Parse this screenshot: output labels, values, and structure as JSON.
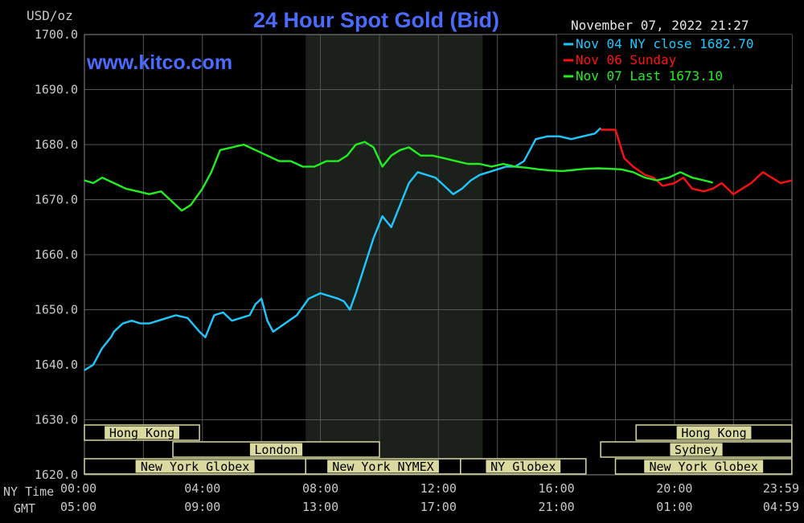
{
  "colors": {
    "background": "#000000",
    "grid": "#555555",
    "frame": "#888888",
    "tick_text": "#c9c9c9",
    "title": "#4b6bff",
    "session_fill": "#d9d9a0",
    "session_text": "#000000",
    "highlight_band": "#1b201b",
    "nov04": "#1ec8ff",
    "nov06": "#ff1010",
    "nov07": "#22ee22",
    "date": "#e6e6e6"
  },
  "header": {
    "unit_label": "USD/oz",
    "title": "24 Hour Spot Gold (Bid)",
    "watermark": "www.kitco.com",
    "timestamp": "November 07, 2022 21:27"
  },
  "legend": [
    {
      "text": "Nov 04 NY close 1682.70",
      "color": "#1ec8ff"
    },
    {
      "text": "Nov 06 Sunday",
      "color": "#ff1010"
    },
    {
      "text": "Nov 07 Last 1673.10",
      "color": "#22ee22"
    }
  ],
  "axis_labels": {
    "ny_time": "NY Time",
    "gmt": "GMT"
  },
  "sessions": [
    {
      "label": "Hong Kong",
      "row": 0,
      "start": 0,
      "end": 3.9
    },
    {
      "label": "London",
      "row": 1,
      "start": 3.0,
      "end": 10.0
    },
    {
      "label": "New York Globex",
      "row": 2,
      "start": 0,
      "end": 7.5
    },
    {
      "label": "New York NYMEX",
      "row": 2,
      "start": 7.5,
      "end": 12.75
    },
    {
      "label": "NY Globex",
      "row": 2,
      "start": 12.75,
      "end": 17.0
    },
    {
      "label": "Hong Kong",
      "row": 0,
      "start": 18.7,
      "end": 23.98
    },
    {
      "label": "Sydney",
      "row": 1,
      "start": 17.5,
      "end": 23.98
    },
    {
      "label": "New York Globex",
      "row": 2,
      "start": 18.0,
      "end": 23.98
    }
  ],
  "chart_data": {
    "type": "line",
    "title": "24 Hour Spot Gold (Bid)",
    "ylabel": "USD/oz",
    "ylim": [
      1620,
      1700
    ],
    "xlim": [
      0,
      23.983
    ],
    "highlight_band": [
      7.5,
      13.5
    ],
    "yticks": [
      "1700.0",
      "1690.0",
      "1680.0",
      "1670.0",
      "1660.0",
      "1650.0",
      "1640.0",
      "1630.0",
      "1620.0"
    ],
    "ytick_values": [
      1700,
      1690,
      1680,
      1670,
      1660,
      1650,
      1640,
      1630,
      1620
    ],
    "xticks_ny": [
      "00:00",
      "04:00",
      "08:00",
      "12:00",
      "16:00",
      "20:00",
      "23:59"
    ],
    "xticks_gmt": [
      "05:00",
      "09:00",
      "13:00",
      "17:00",
      "21:00",
      "01:00",
      "04:59"
    ],
    "xtick_values": [
      0,
      4,
      8,
      12,
      16,
      20,
      23.983
    ],
    "grid": true,
    "legend_position": "top-right",
    "series": [
      {
        "name": "Nov 04 NY close 1682.70",
        "color": "#1ec8ff",
        "x": [
          0,
          0.3,
          0.6,
          0.9,
          1.0,
          1.3,
          1.6,
          1.9,
          2.2,
          2.5,
          2.8,
          3.1,
          3.5,
          3.9,
          4.1,
          4.4,
          4.7,
          5.0,
          5.3,
          5.6,
          5.8,
          6.0,
          6.2,
          6.4,
          6.8,
          7.2,
          7.6,
          8.0,
          8.3,
          8.6,
          8.8,
          9.0,
          9.2,
          9.5,
          9.8,
          10.1,
          10.4,
          10.7,
          11.0,
          11.3,
          11.6,
          11.9,
          12.2,
          12.5,
          12.8,
          13.1,
          13.4,
          13.7,
          14.0,
          14.3,
          14.6,
          14.9,
          15.3,
          15.7,
          16.1,
          16.5,
          16.9,
          17.3,
          17.5
        ],
        "y": [
          1639,
          1640,
          1643,
          1645,
          1646,
          1647.5,
          1648,
          1647.5,
          1647.5,
          1648,
          1648.5,
          1649,
          1648.5,
          1646,
          1645,
          1649,
          1649.5,
          1648,
          1648.5,
          1649,
          1651,
          1652,
          1648,
          1646,
          1647.5,
          1649,
          1652,
          1653,
          1652.5,
          1652,
          1651.5,
          1650,
          1653,
          1658,
          1663,
          1667,
          1665,
          1669,
          1673,
          1675,
          1674.5,
          1674,
          1672.5,
          1671,
          1672,
          1673.5,
          1674.5,
          1675,
          1675.5,
          1676,
          1676,
          1677,
          1681,
          1681.5,
          1681.5,
          1681,
          1681.5,
          1682,
          1683
        ]
      },
      {
        "name": "Nov 06 Sunday",
        "color": "#ff1010",
        "x": [
          17.5,
          18.0,
          18.3,
          18.6,
          19.0,
          19.3,
          19.6,
          20.0,
          20.3,
          20.6,
          21.0,
          21.3,
          21.6,
          22.0,
          22.3,
          22.6,
          23.0,
          23.3,
          23.6,
          23.98
        ],
        "y": [
          1682.7,
          1682.7,
          1677.5,
          1676,
          1674.5,
          1674,
          1672.5,
          1673,
          1674,
          1672,
          1671.5,
          1672,
          1673,
          1671,
          1672,
          1673,
          1675,
          1674,
          1673,
          1673.5
        ]
      },
      {
        "name": "Nov 07 Last 1673.10",
        "color": "#22ee22",
        "x": [
          0,
          0.3,
          0.6,
          1.0,
          1.4,
          1.8,
          2.2,
          2.6,
          3.0,
          3.3,
          3.6,
          4.0,
          4.3,
          4.6,
          5.0,
          5.4,
          5.8,
          6.2,
          6.6,
          7.0,
          7.4,
          7.8,
          8.2,
          8.6,
          8.9,
          9.2,
          9.5,
          9.8,
          10.1,
          10.4,
          10.7,
          11.0,
          11.4,
          11.8,
          12.2,
          12.6,
          13.0,
          13.4,
          13.8,
          14.2,
          14.6,
          15.0,
          15.4,
          15.8,
          16.2,
          16.6,
          17.0,
          17.4,
          17.8,
          18.2,
          18.6,
          19.0,
          19.4,
          19.8,
          20.2,
          20.6,
          21.0,
          21.3
        ],
        "y": [
          1673.5,
          1673,
          1674,
          1673,
          1672,
          1671.5,
          1671,
          1671.5,
          1669.5,
          1668,
          1669,
          1672,
          1675,
          1679,
          1679.5,
          1680,
          1679,
          1678,
          1677,
          1677,
          1676,
          1676,
          1677,
          1677,
          1678,
          1680,
          1680.5,
          1679.5,
          1676,
          1678,
          1679,
          1679.5,
          1678,
          1678,
          1677.5,
          1677,
          1676.5,
          1676.5,
          1676,
          1676.5,
          1676,
          1675.8,
          1675.5,
          1675.3,
          1675.2,
          1675.4,
          1675.6,
          1675.7,
          1675.6,
          1675.5,
          1675,
          1674,
          1673.5,
          1674,
          1675,
          1674,
          1673.5,
          1673.1
        ]
      }
    ]
  }
}
